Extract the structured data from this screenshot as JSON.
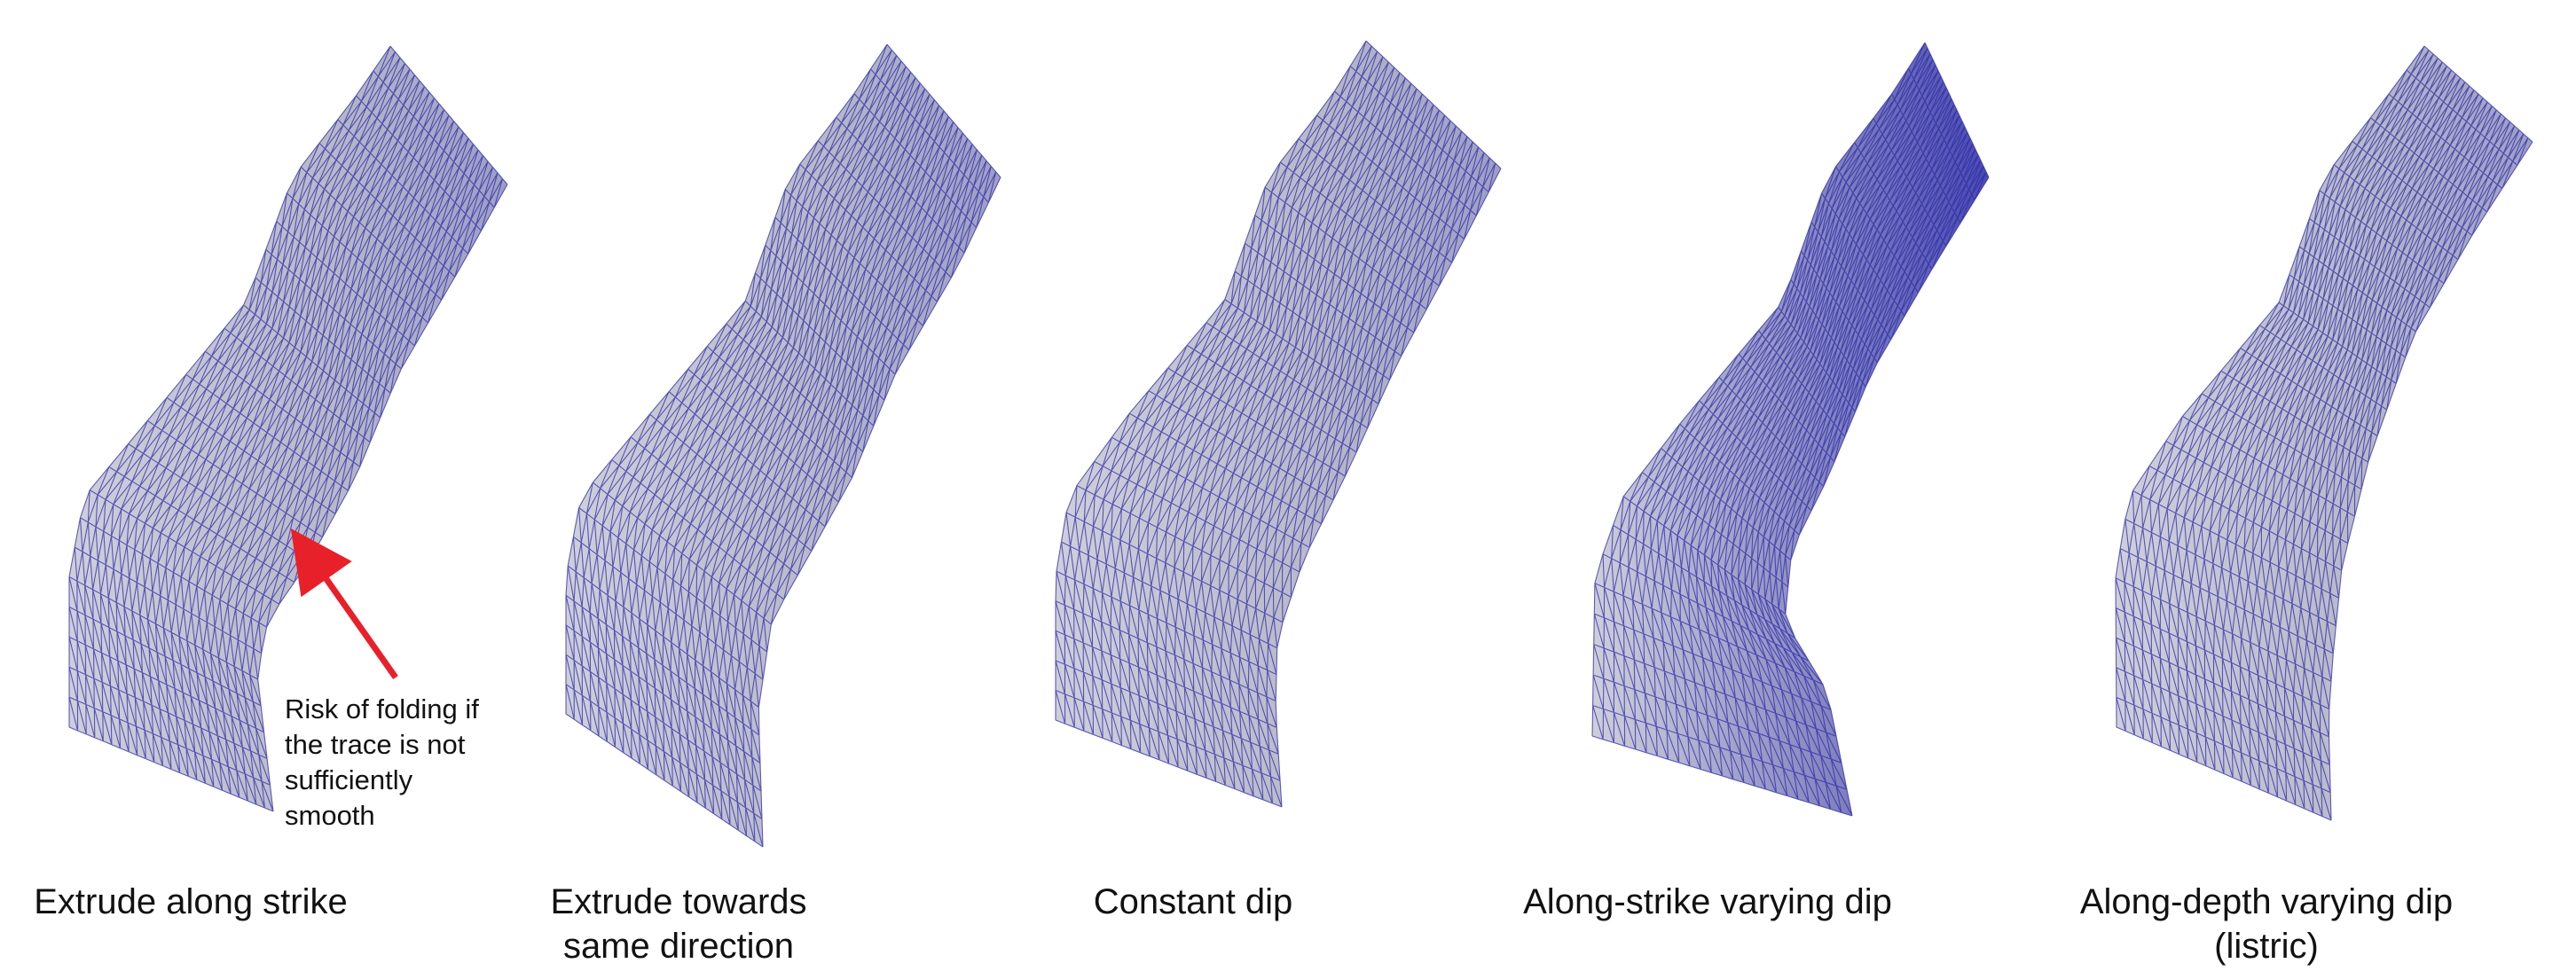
{
  "colors": {
    "mesh_fill": "#c9c9d3",
    "mesh_line": "#2b2bb0",
    "arrow": "#e8202a",
    "text": "#111111"
  },
  "panels": [
    {
      "caption_lines": [
        "Extrude along strike"
      ]
    },
    {
      "caption_lines": [
        "Extrude towards",
        "same direction"
      ]
    },
    {
      "caption_lines": [
        "Constant dip"
      ]
    },
    {
      "caption_lines": [
        "Along-strike varying dip"
      ]
    },
    {
      "caption_lines": [
        "Along-depth varying dip",
        "(listric)"
      ]
    }
  ],
  "annotation": {
    "lines": [
      "Risk of folding if",
      "the trace is not",
      "sufficiently",
      "smooth"
    ],
    "icon": "red-arrow-icon"
  }
}
